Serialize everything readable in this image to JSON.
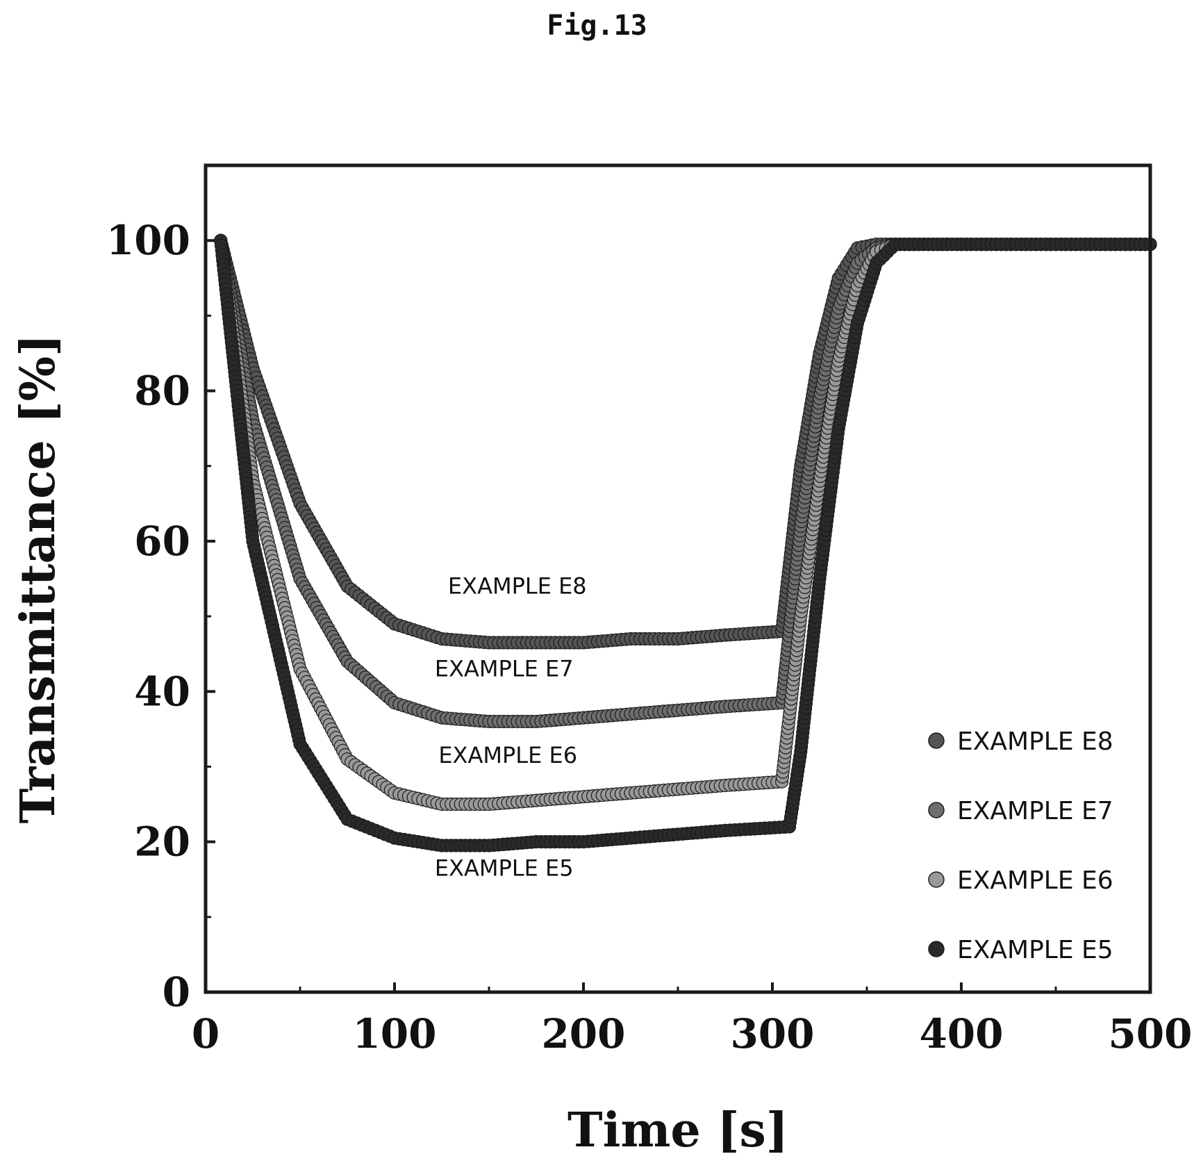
{
  "figure_label": "Fig.13",
  "chart_data": {
    "type": "scatter",
    "xlabel": "Time [s]",
    "ylabel": "Transmittance [%]",
    "xlim": [
      0,
      500
    ],
    "ylim": [
      0,
      110
    ],
    "xticks": [
      0,
      100,
      200,
      300,
      400,
      500
    ],
    "yticks": [
      0,
      20,
      40,
      60,
      80,
      100
    ],
    "grid": false,
    "legend_position": "bottom-right",
    "series": [
      {
        "name": "EXAMPLE  E8",
        "color": "#555555",
        "curve_label": "EXAMPLE  E8",
        "x": [
          8,
          25,
          50,
          75,
          100,
          125,
          150,
          175,
          200,
          225,
          250,
          275,
          305,
          315,
          325,
          335,
          345,
          355,
          365,
          400,
          450,
          500
        ],
        "y": [
          100,
          83,
          65,
          54,
          49,
          47,
          46.5,
          46.5,
          46.5,
          47,
          47,
          47.5,
          48,
          70,
          85,
          95,
          99,
          99.5,
          99.5,
          99.5,
          99.5,
          99.5
        ]
      },
      {
        "name": "EXAMPLE  E7",
        "color": "#6e6e6e",
        "curve_label": "EXAMPLE  E7",
        "x": [
          8,
          25,
          50,
          75,
          100,
          125,
          150,
          175,
          200,
          225,
          250,
          275,
          305,
          315,
          325,
          335,
          345,
          355,
          365,
          400,
          450,
          500
        ],
        "y": [
          100,
          76,
          55,
          44,
          38.5,
          36.5,
          36,
          36,
          36.5,
          37,
          37.5,
          38,
          38.5,
          62,
          79,
          91,
          97,
          99,
          99.5,
          99.5,
          99.5,
          99.5
        ]
      },
      {
        "name": "EXAMPLE  E6",
        "color": "#999999",
        "curve_label": "EXAMPLE  E6",
        "x": [
          8,
          25,
          50,
          75,
          100,
          125,
          150,
          175,
          200,
          225,
          250,
          275,
          305,
          315,
          325,
          335,
          345,
          355,
          365,
          400,
          450,
          500
        ],
        "y": [
          100,
          68,
          43,
          31,
          26.5,
          25,
          25,
          25.5,
          26,
          26.5,
          27,
          27.5,
          28,
          50,
          68,
          84,
          94,
          98.5,
          99.5,
          99.5,
          99.5,
          99.5
        ]
      },
      {
        "name": "EXAMPLE  E5",
        "color": "#2a2a2a",
        "curve_label": "EXAMPLE  E5",
        "x": [
          8,
          25,
          50,
          75,
          100,
          125,
          150,
          175,
          200,
          225,
          250,
          275,
          309,
          315,
          325,
          335,
          345,
          355,
          365,
          400,
          450,
          500
        ],
        "y": [
          100,
          60,
          33,
          23,
          20.5,
          19.5,
          19.5,
          20,
          20,
          20.5,
          21,
          21.5,
          22,
          32,
          55,
          75,
          89,
          97,
          99.5,
          99.5,
          99.5,
          99.5
        ]
      }
    ]
  }
}
